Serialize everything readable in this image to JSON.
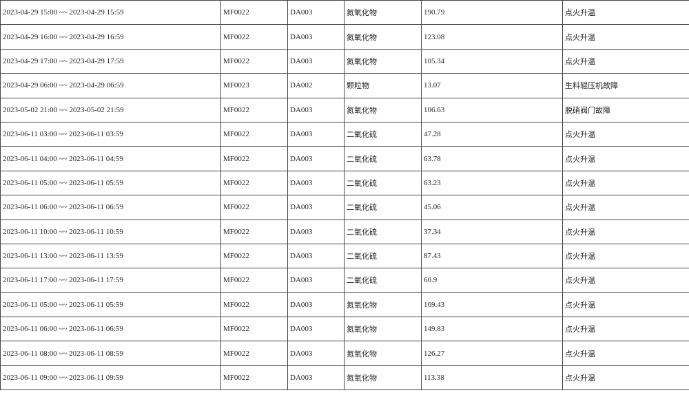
{
  "rows": [
    [
      "2023-04-29 15:00 ~~ 2023-04-29 15:59",
      "MF0022",
      "DA003",
      "氮氧化物",
      "190.79",
      "点火升温"
    ],
    [
      "2023-04-29 16:00 ~~ 2023-04-29 16:59",
      "MF0022",
      "DA003",
      "氮氧化物",
      "123.08",
      "点火升温"
    ],
    [
      "2023-04-29 17:00 ~~ 2023-04-29 17:59",
      "MF0022",
      "DA003",
      "氮氧化物",
      "105.34",
      "点火升温"
    ],
    [
      "2023-04-29 06:00 ~~ 2023-04-29 06:59",
      "MF0023",
      "DA002",
      "颗粒物",
      "13.07",
      "生料辊压机故障"
    ],
    [
      "2023-05-02 21:00 ~~ 2023-05-02 21:59",
      "MF0022",
      "DA003",
      "氮氧化物",
      "106.63",
      "脱硝阀门故障"
    ],
    [
      "2023-06-11 03:00 ~~ 2023-06-11 03:59",
      "MF0022",
      "DA003",
      "二氧化硫",
      "47.28",
      "点火升温"
    ],
    [
      "2023-06-11 04:00 ~~ 2023-06-11 04:59",
      "MF0022",
      "DA003",
      "二氧化硫",
      "63.78",
      "点火升温"
    ],
    [
      "2023-06-11 05:00 ~~ 2023-06-11 05:59",
      "MF0022",
      "DA003",
      "二氧化硫",
      "63.23",
      "点火升温"
    ],
    [
      "2023-06-11 06:00 ~~ 2023-06-11 06:59",
      "MF0022",
      "DA003",
      "二氧化硫",
      "45.06",
      "点火升温"
    ],
    [
      "2023-06-11 10:00 ~~ 2023-06-11 10:59",
      "MF0022",
      "DA003",
      "二氧化硫",
      "37.34",
      "点火升温"
    ],
    [
      "2023-06-11 13:00 ~~ 2023-06-11 13:59",
      "MF0022",
      "DA003",
      "二氧化硫",
      "87.43",
      "点火升温"
    ],
    [
      "2023-06-11 17:00 ~~ 2023-06-11 17:59",
      "MF0022",
      "DA003",
      "二氧化硫",
      "60.9",
      "点火升温"
    ],
    [
      "2023-06-11 05:00 ~~ 2023-06-11 05:59",
      "MF0022",
      "DA003",
      "氮氧化物",
      "169.43",
      "点火升温"
    ],
    [
      "2023-06-11 06:00 ~~ 2023-06-11 06:59",
      "MF0022",
      "DA003",
      "氮氧化物",
      "149.83",
      "点火升温"
    ],
    [
      "2023-06-11 08:00 ~~ 2023-06-11 08:59",
      "MF0022",
      "DA003",
      "氮氧化物",
      "126.27",
      "点火升温"
    ],
    [
      "2023-06-11 09:00 ~~ 2023-06-11 09:59",
      "MF0022",
      "DA003",
      "氮氧化物",
      "113.38",
      "点火升温"
    ]
  ]
}
